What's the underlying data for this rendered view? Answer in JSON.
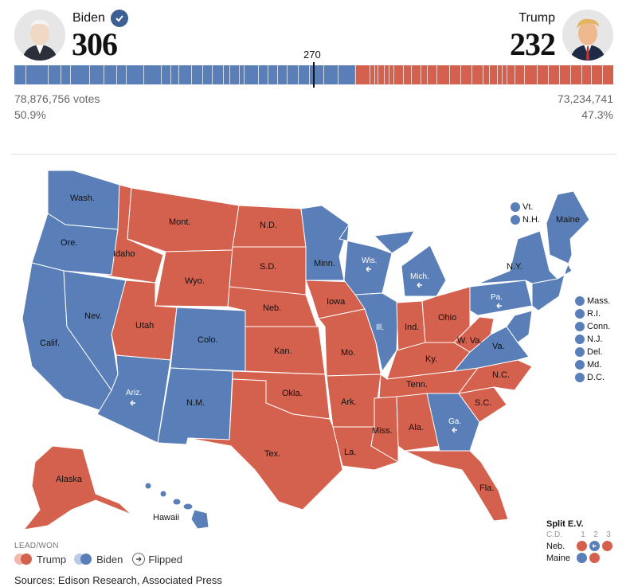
{
  "biden": {
    "name": "Biden",
    "ev": "306",
    "votes": "78,876,756 votes",
    "pct": "50.9%"
  },
  "trump": {
    "name": "Trump",
    "ev": "232",
    "votes": "73,234,741",
    "pct": "47.3%"
  },
  "threshold": "270",
  "bar": {
    "biden_ev": 306,
    "trump_ev": 232,
    "total": 538
  },
  "colors": {
    "biden": "#5a7fb8",
    "trump": "#d4604e"
  },
  "states": {
    "wash": "Wash.",
    "ore": "Ore.",
    "calif": "Calif.",
    "nev": "Nev.",
    "idaho": "Idaho",
    "mont": "Mont.",
    "wyo": "Wyo.",
    "utah": "Utah",
    "colo": "Colo.",
    "ariz": "Ariz.",
    "nm": "N.M.",
    "nd": "N.D.",
    "sd": "S.D.",
    "neb": "Neb.",
    "kan": "Kan.",
    "okla": "Okla.",
    "tex": "Tex.",
    "minn": "Minn.",
    "iowa": "Iowa",
    "mo": "Mo.",
    "ark": "Ark.",
    "la": "La.",
    "wis": "Wis.",
    "ill": "Ill.",
    "mich": "Mich.",
    "ind": "Ind.",
    "ohio": "Ohio",
    "ky": "Ky.",
    "tenn": "Tenn.",
    "miss": "Miss.",
    "ala": "Ala.",
    "ga": "Ga.",
    "fla": "Fla.",
    "sc": "S.C.",
    "nc": "N.C.",
    "va": "Va.",
    "wva": "W. Va.",
    "pa": "Pa.",
    "ny": "N.Y.",
    "maine": "Maine",
    "alaska": "Alaska",
    "hawaii": "Hawaii"
  },
  "small_states_top": [
    "Vt.",
    "N.H."
  ],
  "small_states_right": [
    "Mass.",
    "R.I.",
    "Conn.",
    "N.J.",
    "Del.",
    "Md.",
    "D.C."
  ],
  "split_ev": {
    "title": "Split E.V.",
    "cd_label": "C.D.",
    "cds": [
      "1",
      "2",
      "3"
    ],
    "rows": [
      "Neb.",
      "Maine"
    ]
  },
  "legend": {
    "title": "LEAD/WON",
    "trump": "Trump",
    "biden": "Biden",
    "flipped": "Flipped"
  },
  "sources": "Sources: Edison Research, Associated Press"
}
